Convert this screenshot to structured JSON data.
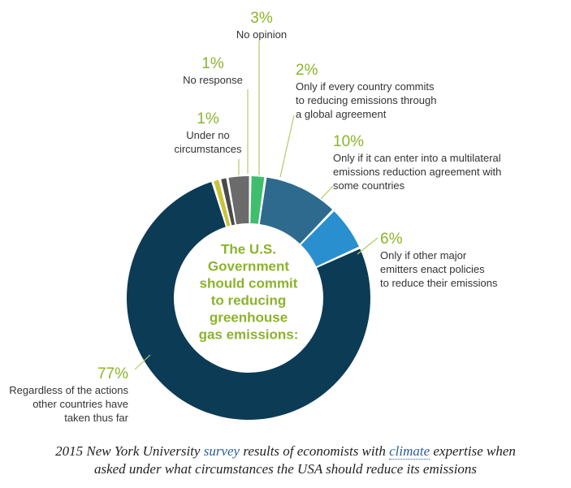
{
  "chart_data": {
    "type": "pie",
    "donut": true,
    "center_title": [
      "The U.S.",
      "Government",
      "should commit",
      "to reducing",
      "greenhouse",
      "gas emissions:"
    ],
    "slices": [
      {
        "pct_label": "3%",
        "value": 3,
        "color": "#6b6b6b",
        "label_lines": [
          "No opinion"
        ]
      },
      {
        "pct_label": "2%",
        "value": 2,
        "color": "#3fbf6e",
        "label_lines": [
          "Only if every country commits",
          "to reducing emissions through",
          "a global agreement"
        ]
      },
      {
        "pct_label": "10%",
        "value": 10,
        "color": "#2e6a8e",
        "label_lines": [
          "Only if it can enter into a multilateral",
          "emissions reduction agreement with",
          "some countries"
        ]
      },
      {
        "pct_label": "6%",
        "value": 6,
        "color": "#2a8fcf",
        "label_lines": [
          "Only if other major",
          "emitters enact policies",
          "to reduce their emissions"
        ]
      },
      {
        "pct_label": "77%",
        "value": 77,
        "color": "#0c3b55",
        "label_lines": [
          "Regardless of the actions",
          "other countries have",
          "taken thus far"
        ]
      },
      {
        "pct_label": "1%",
        "value": 1,
        "color": "#c8c43a",
        "label_lines": [
          "Under no",
          "circumstances"
        ]
      },
      {
        "pct_label": "1%",
        "value": 1,
        "color": "#4a4a4a",
        "label_lines": [
          "No response"
        ]
      }
    ]
  },
  "caption": {
    "line1_pre": "2015 New York University ",
    "line1_link1": "survey",
    "line1_mid": " results of economists with ",
    "line1_link2": "climate",
    "line1_post": " expertise when",
    "line2": "asked under what circumstances the USA should reduce its emissions"
  }
}
